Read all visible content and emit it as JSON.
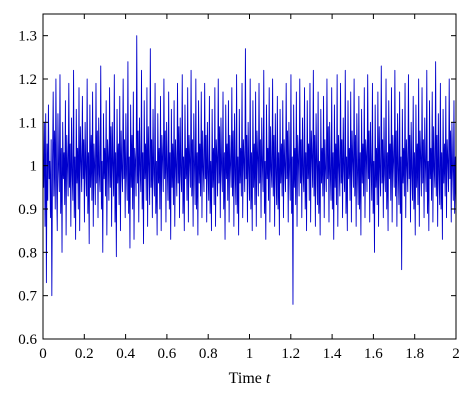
{
  "chart_data": {
    "type": "line",
    "title": "",
    "xlabel": "Time",
    "xlabel_var": "t",
    "ylabel": "",
    "xlim": [
      0,
      2
    ],
    "ylim": [
      0.6,
      1.35
    ],
    "x_ticks": [
      0,
      0.2,
      0.4,
      0.6,
      0.8,
      1,
      1.2,
      1.4,
      1.6,
      1.8,
      2
    ],
    "x_tick_labels": [
      "0",
      "0.2",
      "0.4",
      "0.6",
      "0.8",
      "1",
      "1.2",
      "1.4",
      "1.6",
      "1.8",
      "2"
    ],
    "y_ticks": [
      0.6,
      0.7,
      0.8,
      0.9,
      1,
      1.1,
      1.2,
      1.3
    ],
    "y_tick_labels": [
      "0.6",
      "0.7",
      "0.8",
      "0.9",
      "1",
      "1.1",
      "1.2",
      "1.3"
    ],
    "grid": false,
    "legend": "none",
    "series": [
      {
        "color": "#0000cc",
        "x_start": 0,
        "x_end": 2,
        "sample_count": 600,
        "values": [
          1.02,
          0.95,
          1.1,
          0.86,
          1.12,
          0.73,
          1.05,
          0.92,
          1.14,
          0.97,
          1.01,
          0.88,
          1.06,
          0.7,
          1.0,
          1.17,
          0.93,
          1.08,
          0.9,
          1.2,
          0.96,
          0.85,
          1.12,
          0.99,
          0.94,
          1.21,
          0.89,
          1.04,
          0.8,
          1.1,
          0.97,
          1.03,
          0.91,
          1.15,
          0.84,
          1.07,
          1.0,
          0.93,
          1.19,
          0.95,
          1.05,
          0.86,
          1.11,
          0.98,
          0.92,
          1.22,
          0.88,
          1.02,
          0.83,
          1.13,
          0.96,
          1.04,
          0.9,
          1.18,
          0.85,
          1.09,
          1.01,
          0.94,
          1.16,
          0.97,
          1.06,
          0.87,
          1.1,
          0.99,
          0.93,
          1.2,
          0.89,
          1.03,
          0.82,
          1.14,
          0.95,
          1.07,
          0.92,
          1.17,
          0.86,
          1.05,
          1.0,
          0.91,
          1.19,
          0.96,
          1.08,
          0.88,
          1.11,
          0.98,
          0.94,
          1.23,
          0.9,
          1.01,
          0.8,
          1.12,
          0.97,
          1.04,
          0.93,
          1.15,
          0.84,
          1.06,
          1.02,
          0.92,
          1.18,
          0.95,
          1.09,
          0.86,
          1.1,
          1.0,
          0.93,
          1.21,
          0.87,
          1.03,
          0.79,
          1.13,
          0.96,
          1.05,
          0.91,
          1.16,
          0.85,
          1.08,
          0.99,
          0.94,
          1.2,
          0.97,
          1.06,
          0.88,
          1.12,
          0.98,
          0.92,
          1.24,
          0.89,
          1.02,
          0.81,
          1.14,
          0.95,
          1.07,
          0.9,
          1.17,
          0.83,
          1.04,
          1.01,
          0.93,
          1.3,
          0.96,
          1.08,
          0.87,
          1.11,
          0.99,
          0.94,
          1.22,
          0.9,
          1.03,
          0.82,
          1.15,
          0.97,
          1.05,
          0.92,
          1.18,
          0.86,
          1.09,
          1.0,
          0.91,
          1.27,
          0.95,
          1.06,
          0.88,
          1.13,
          0.98,
          0.93,
          1.19,
          0.89,
          1.01,
          0.84,
          1.12,
          0.96,
          1.04,
          0.9,
          1.16,
          0.85,
          1.07,
          1.02,
          0.94,
          1.2,
          0.97,
          1.08,
          0.87,
          1.1,
          0.99,
          0.92,
          1.17,
          0.9,
          1.03,
          0.83,
          1.13,
          0.95,
          1.05,
          0.91,
          1.15,
          0.86,
          1.06,
          1.0,
          0.93,
          1.19,
          0.96,
          1.09,
          0.88,
          1.11,
          0.98,
          0.94,
          1.21,
          0.89,
          1.02,
          0.85,
          1.14,
          0.97,
          1.04,
          0.92,
          1.18,
          0.87,
          1.07,
          1.01,
          0.95,
          1.22,
          0.93,
          1.06,
          0.86,
          1.12,
          1.0,
          0.91,
          1.2,
          0.9,
          1.03,
          0.84,
          1.15,
          0.96,
          1.05,
          0.93,
          1.17,
          0.88,
          1.08,
          0.99,
          0.94,
          1.19,
          0.97,
          1.07,
          0.87,
          1.1,
          0.98,
          0.92,
          1.16,
          0.89,
          1.01,
          0.85,
          1.13,
          0.95,
          1.04,
          0.91,
          1.18,
          0.86,
          1.06,
          1.02,
          0.93,
          1.2,
          0.96,
          1.09,
          0.88,
          1.11,
          0.99,
          0.94,
          1.17,
          0.9,
          1.03,
          0.83,
          1.14,
          0.97,
          1.05,
          0.92,
          1.15,
          0.87,
          1.07,
          1.0,
          0.95,
          1.18,
          0.93,
          1.08,
          0.86,
          1.12,
          0.98,
          0.91,
          1.21,
          0.89,
          1.02,
          0.84,
          1.13,
          0.96,
          1.04,
          0.93,
          1.19,
          0.88,
          1.06,
          1.01,
          0.94,
          1.27,
          0.97,
          1.07,
          0.87,
          1.1,
          0.99,
          0.92,
          1.2,
          0.9,
          1.03,
          0.85,
          1.15,
          0.95,
          1.05,
          0.91,
          1.17,
          0.86,
          1.08,
          1.02,
          0.93,
          1.19,
          0.96,
          1.06,
          0.88,
          1.11,
          1.0,
          0.94,
          1.22,
          0.89,
          1.01,
          0.83,
          1.14,
          0.97,
          1.04,
          0.92,
          1.18,
          0.87,
          1.09,
          0.99,
          0.95,
          1.2,
          0.93,
          1.07,
          0.86,
          1.12,
          0.98,
          0.91,
          1.16,
          0.9,
          1.03,
          0.84,
          1.13,
          0.96,
          1.05,
          0.93,
          1.15,
          0.88,
          1.06,
          1.0,
          0.94,
          1.19,
          0.97,
          1.08,
          0.87,
          1.1,
          0.99,
          0.92,
          1.21,
          0.89,
          1.02,
          0.68,
          1.14,
          0.95,
          1.04,
          0.91,
          1.17,
          0.86,
          1.07,
          1.01,
          0.93,
          1.2,
          0.96,
          1.06,
          0.88,
          1.11,
          0.98,
          0.94,
          1.18,
          0.9,
          1.03,
          0.85,
          1.15,
          0.97,
          1.05,
          0.92,
          1.19,
          0.87,
          1.08,
          1.02,
          0.95,
          1.22,
          0.93,
          1.07,
          0.86,
          1.12,
          1.0,
          0.91,
          1.17,
          0.89,
          1.01,
          0.84,
          1.13,
          0.96,
          1.04,
          0.93,
          1.16,
          0.88,
          1.06,
          0.99,
          0.94,
          1.2,
          0.97,
          1.09,
          0.87,
          1.1,
          0.98,
          0.92,
          1.18,
          0.9,
          1.03,
          0.83,
          1.14,
          0.95,
          1.05,
          0.91,
          1.21,
          0.86,
          1.07,
          1.0,
          0.93,
          1.19,
          0.96,
          1.06,
          0.88,
          1.11,
          0.99,
          0.94,
          1.22,
          0.89,
          1.02,
          0.85,
          1.15,
          0.97,
          1.04,
          0.92,
          1.17,
          0.87,
          1.08,
          1.01,
          0.95,
          1.2,
          0.93,
          1.07,
          0.86,
          1.12,
          0.98,
          0.91,
          1.16,
          0.9,
          1.03,
          0.84,
          1.13,
          0.96,
          1.05,
          0.93,
          1.18,
          0.88,
          1.06,
          1.02,
          0.94,
          1.21,
          0.97,
          1.08,
          0.87,
          1.1,
          1.0,
          0.92,
          1.19,
          0.89,
          1.01,
          0.8,
          1.14,
          0.95,
          1.04,
          0.91,
          1.17,
          0.86,
          1.09,
          0.99,
          0.93,
          1.23,
          0.96,
          1.06,
          0.88,
          1.11,
          0.98,
          0.94,
          1.2,
          0.9,
          1.03,
          0.85,
          1.15,
          0.97,
          1.05,
          0.92,
          1.18,
          0.87,
          1.07,
          1.01,
          0.95,
          1.22,
          0.93,
          1.08,
          0.86,
          1.12,
          0.99,
          0.91,
          1.17,
          0.89,
          1.02,
          0.76,
          1.13,
          0.96,
          1.04,
          0.93,
          1.19,
          0.88,
          1.06,
          1.0,
          0.94,
          1.21,
          0.97,
          1.07,
          0.87,
          1.1,
          0.98,
          0.92,
          1.16,
          0.9,
          1.03,
          0.84,
          1.14,
          0.95,
          1.05,
          0.91,
          1.2,
          0.86,
          1.08,
          1.02,
          0.93,
          1.18,
          0.96,
          1.06,
          0.88,
          1.11,
          1.0,
          0.94,
          1.22,
          0.89,
          1.01,
          0.85,
          1.15,
          0.97,
          1.04,
          0.92,
          1.17,
          0.87,
          1.09,
          0.99,
          0.95,
          1.24,
          0.93,
          1.07,
          0.86,
          1.12,
          0.98,
          0.91,
          1.19,
          0.9,
          1.03,
          0.83,
          1.13,
          0.96,
          1.05,
          0.93,
          1.16,
          0.88,
          1.06,
          1.01,
          0.94,
          1.2,
          0.97,
          1.08,
          0.87,
          1.1,
          0.99,
          0.92,
          1.15,
          0.89,
          1.02,
          0.9
        ]
      }
    ]
  }
}
